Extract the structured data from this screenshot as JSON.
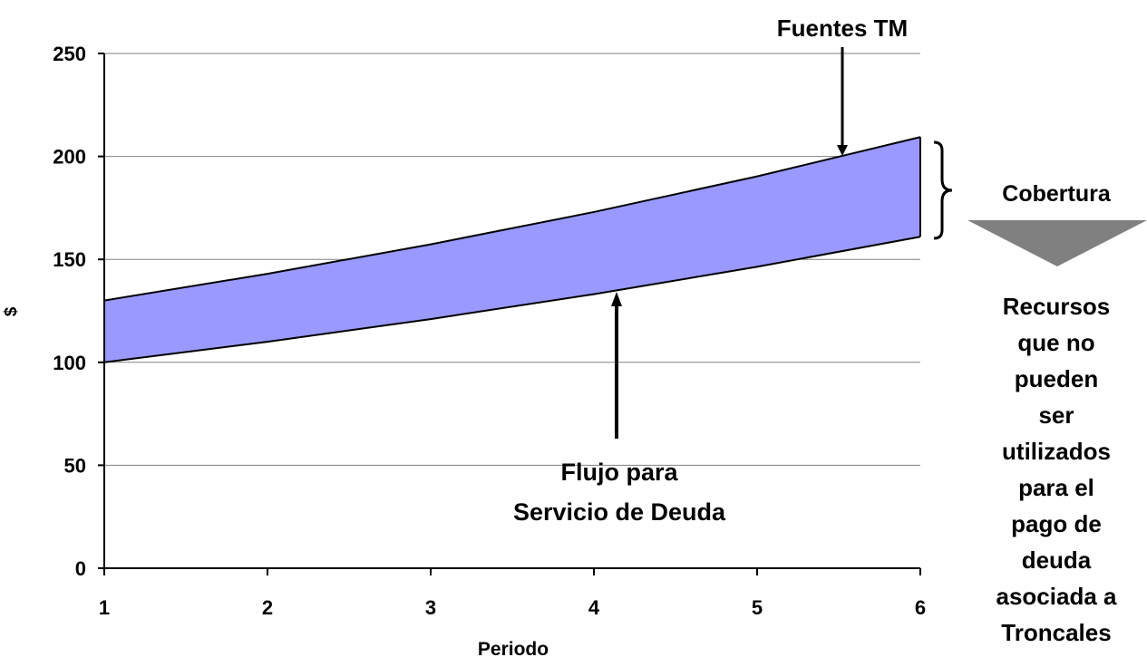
{
  "chart_data": {
    "type": "area",
    "title": "",
    "xlabel": "Periodo",
    "ylabel": "$",
    "x": [
      1,
      2,
      3,
      4,
      5,
      6
    ],
    "xlim": [
      1,
      6
    ],
    "ylim": [
      0,
      250
    ],
    "yticks": [
      0,
      50,
      100,
      150,
      200,
      250
    ],
    "xticks": [
      1,
      2,
      3,
      4,
      5,
      6
    ],
    "grid": "horizontal",
    "fill_color": "#9999ff",
    "line_color": "#000000",
    "grid_color": "#808080",
    "series": [
      {
        "name": "Flujo para Servicio de Deuda",
        "values": [
          100,
          110,
          121,
          133.1,
          146.4,
          161
        ]
      },
      {
        "name": "Fuentes TM",
        "values": [
          130,
          143,
          157.3,
          173,
          190.3,
          209.4
        ]
      }
    ],
    "annotations": {
      "fuentes": "Fuentes TM",
      "flujo_lines": [
        "Flujo para",
        "Servicio de Deuda"
      ],
      "cobertura": "Cobertura",
      "recursos_lines": [
        "Recursos",
        "que no",
        "pueden",
        "ser",
        "utilizados",
        "para el",
        "pago de",
        "deuda",
        "asociada a",
        "Troncales"
      ]
    }
  }
}
